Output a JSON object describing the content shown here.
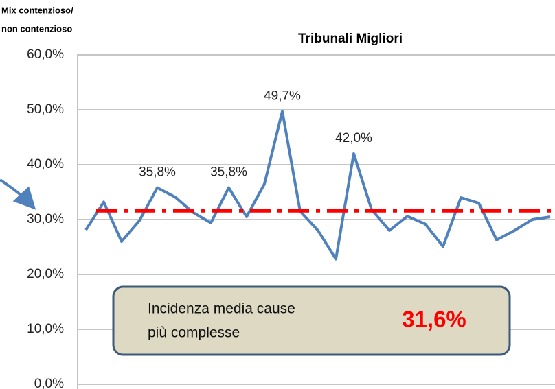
{
  "chart_data": {
    "type": "line",
    "title": "Tribunali Migliori",
    "corner_label": [
      "Mix contenzioso/",
      "non contenzioso"
    ],
    "categories": [
      null,
      null,
      null,
      null,
      null,
      null,
      null,
      null,
      null,
      null,
      null,
      null,
      null,
      null,
      null,
      null,
      null,
      null,
      null,
      null,
      null,
      null,
      null,
      null,
      null,
      null,
      null
    ],
    "series": [
      {
        "color": "#4f81bd",
        "values": [
          28.1,
          33.2,
          26.0,
          29.8,
          35.8,
          34.1,
          31.3,
          29.4,
          35.8,
          30.5,
          36.5,
          49.7,
          31.5,
          28.0,
          22.8,
          42.0,
          31.8,
          28.0,
          30.6,
          29.2,
          25.1,
          34.0,
          33.0,
          26.3,
          28.0,
          30.0,
          30.5
        ],
        "value_labels": [
          null,
          null,
          null,
          null,
          "35,8%",
          null,
          null,
          null,
          "35,8%",
          null,
          null,
          "49,7%",
          null,
          null,
          null,
          "42,0%",
          null,
          null,
          null,
          null,
          null,
          null,
          null,
          null,
          null,
          null,
          null
        ]
      }
    ],
    "average": {
      "value": 31.6,
      "label": "31,6%",
      "color": "#ff0000",
      "text": [
        "Incidenza media cause",
        "più complesse"
      ]
    },
    "ylim": [
      0,
      60
    ],
    "yticks": [
      {
        "value": 0,
        "label": "0,0%"
      },
      {
        "value": 10,
        "label": "10,0%"
      },
      {
        "value": 20,
        "label": "20,0%"
      },
      {
        "value": 30,
        "label": "30,0%"
      },
      {
        "value": 40,
        "label": "40,0%"
      },
      {
        "value": 50,
        "label": "50,0%"
      },
      {
        "value": 60,
        "label": "60,0%"
      }
    ],
    "grid": true
  }
}
